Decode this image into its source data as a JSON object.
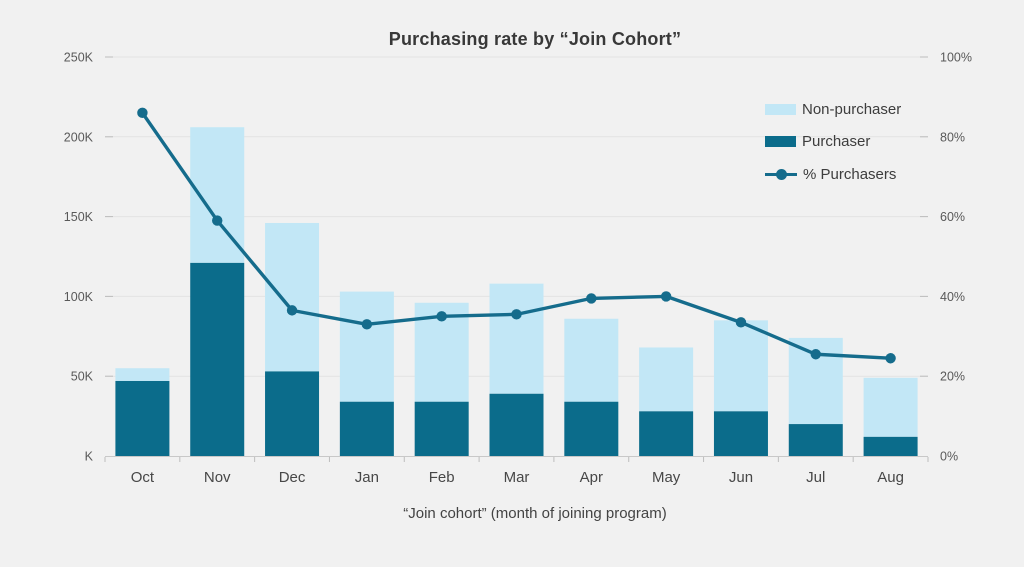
{
  "chart": {
    "title": "Purchasing rate by “Join Cohort”",
    "x_axis_title": "“Join cohort” (month of joining program)"
  },
  "legend": {
    "position": "top-right",
    "items": [
      {
        "label": "Non-purchaser",
        "swatch": "light-blue-square"
      },
      {
        "label": "Purchaser",
        "swatch": "dark-teal-square"
      },
      {
        "label": "% Purchasers",
        "swatch": "line-with-round-marker"
      }
    ]
  },
  "colors": {
    "background": "#f1f1f1",
    "non_purchaser": "#c2e7f6",
    "purchaser": "#0b6c8b",
    "pct_line": "#156c8c",
    "gridline": "#e3e3e3",
    "axis_line": "#c8c8c8",
    "tick_mark": "#bdbdbd",
    "tick_text": "#595959",
    "month_text": "#474747"
  },
  "chart_data": {
    "type": "bar",
    "subtype": "stacked-bars-with-line-overlay",
    "title": "Purchasing rate by “Join Cohort”",
    "xlabel": "“Join cohort” (month of joining program)",
    "categories": [
      "Oct",
      "Nov",
      "Dec",
      "Jan",
      "Feb",
      "Mar",
      "Apr",
      "May",
      "Jun",
      "Jul",
      "Aug"
    ],
    "series": [
      {
        "name": "Purchaser",
        "render": "bar-stack-bottom",
        "axis": "left",
        "unit": "K",
        "values": [
          47,
          121,
          53,
          34,
          34,
          39,
          34,
          28,
          28,
          20,
          12
        ]
      },
      {
        "name": "Non-purchaser",
        "render": "bar-stack-top",
        "axis": "left",
        "unit": "K",
        "values": [
          8,
          85,
          93,
          69,
          62,
          69,
          52,
          40,
          57,
          54,
          37
        ]
      },
      {
        "name": "% Purchasers",
        "render": "line",
        "axis": "right",
        "unit": "%",
        "values": [
          86,
          59,
          36.5,
          33,
          35,
          35.5,
          39.5,
          40,
          33.5,
          25.5,
          24.5
        ]
      }
    ],
    "stacked_totals_k": [
      55,
      206,
      146,
      103,
      96,
      108,
      86,
      68,
      85,
      74,
      49
    ],
    "left_axis": {
      "ticks": [
        "250K",
        "200K",
        "150K",
        "100K",
        "50K",
        "K"
      ],
      "values": [
        250,
        200,
        150,
        100,
        50,
        0
      ],
      "range": [
        0,
        250
      ],
      "unit": "K"
    },
    "right_axis": {
      "ticks": [
        "100%",
        "80%",
        "60%",
        "40%",
        "20%",
        "0%"
      ],
      "values": [
        100,
        80,
        60,
        40,
        20,
        0
      ],
      "range": [
        0,
        100
      ],
      "unit": "%"
    },
    "grid": true,
    "legend_position": "top-right"
  }
}
